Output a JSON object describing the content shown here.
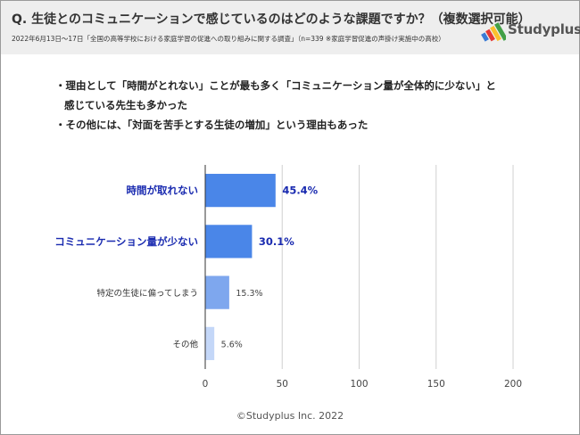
{
  "header": {
    "title": "Q. 生徒とのコミュニケーションで感じているのはどのような課題ですか？（複数選択可能）",
    "subtitle": "2022年6月13日〜17日「全国の高等学校における家庭学習の促進への取り組みに関する調査」（n=339 ※家庭学習促進の声掛け実施中の高校）",
    "logo_text": "Studyplus",
    "logo_colors": [
      "#3a7bd5",
      "#e53935",
      "#fbc02d",
      "#43a047"
    ]
  },
  "notes": [
    {
      "line1": "・理由として「時間がとれない」ことが最も多く「コミュニケーション量が全体的に少ない」と",
      "line2": "感じている先生も多かった"
    },
    {
      "line1": "・その他には、「対面を苦手とする生徒の増加」という理由もあった",
      "line2": ""
    }
  ],
  "chart_data": {
    "type": "bar",
    "orientation": "horizontal",
    "categories": [
      "時間が取れない",
      "コミュニケーション量が少ない",
      "特定の生徒に偏ってしまう",
      "その他"
    ],
    "values": [
      45.4,
      30.1,
      15.3,
      5.6
    ],
    "value_labels": [
      "45.4%",
      "30.1%",
      "15.3%",
      "5.6%"
    ],
    "highlighted": [
      true,
      true,
      false,
      false
    ],
    "bar_colors": [
      "#4a86e8",
      "#4a86e8",
      "#7ea7ee",
      "#c4d7f8"
    ],
    "highlight_label_color": "#1a2bb0",
    "xlim": [
      0,
      200
    ],
    "xticks": [
      0,
      50,
      100,
      150,
      200
    ],
    "xtick_labels": [
      "0",
      "50",
      "100",
      "150",
      "200"
    ],
    "grid": true,
    "legend": "none"
  },
  "footer": {
    "copyright": "©Studyplus Inc. 2022"
  }
}
